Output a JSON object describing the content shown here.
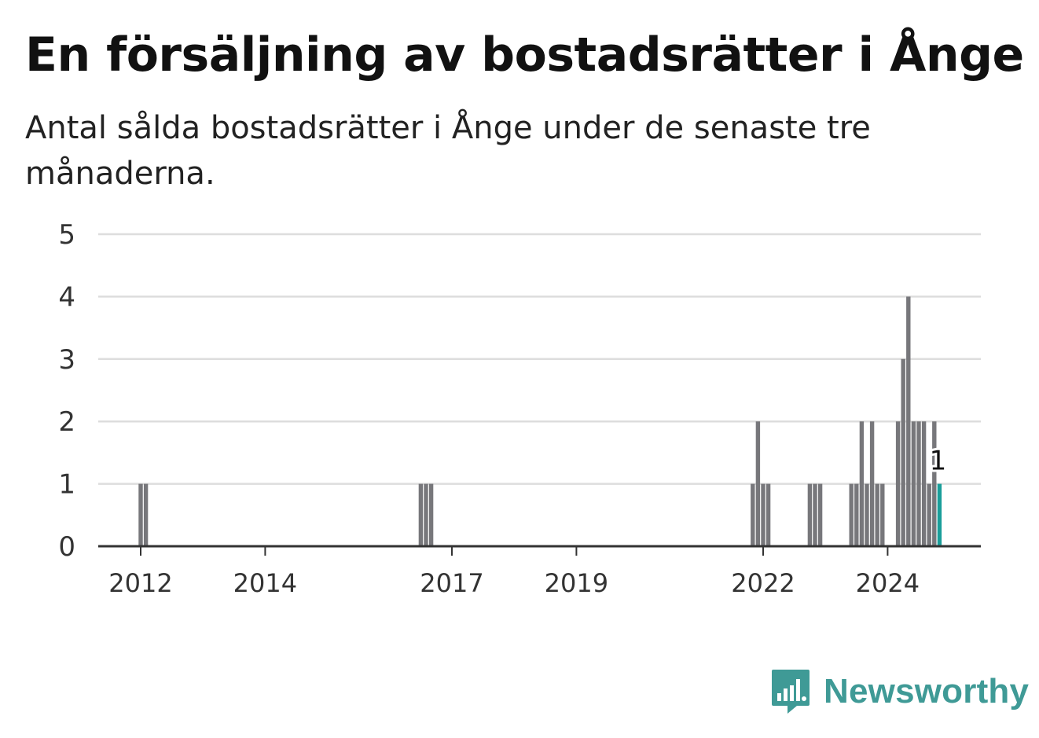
{
  "header": {
    "title": "En försäljning av bostadsrätter i Ånge",
    "subtitle": "Antal sålda bostadsrätter i Ånge under de senaste tre månaderna."
  },
  "brand": {
    "name": "Newsworthy",
    "color": "#3f9a96",
    "icon": "newsworthy-bar-chart-icon"
  },
  "colors": {
    "bar": "#77777b",
    "highlight": "#1a9e9a",
    "grid": "#dddddd",
    "axis": "#333333"
  },
  "chart_data": {
    "type": "bar",
    "x_unit": "month",
    "ylim": [
      0,
      5
    ],
    "yticks": [
      0,
      1,
      2,
      3,
      4,
      5
    ],
    "xtick_labels": [
      "2012",
      "2014",
      "2017",
      "2019",
      "2022",
      "2024"
    ],
    "grid": true,
    "values": [
      {
        "x": "2012-01",
        "y": 1
      },
      {
        "x": "2012-02",
        "y": 1
      },
      {
        "x": "2016-07",
        "y": 1
      },
      {
        "x": "2016-08",
        "y": 1
      },
      {
        "x": "2016-09",
        "y": 1
      },
      {
        "x": "2021-11",
        "y": 1
      },
      {
        "x": "2021-12",
        "y": 2
      },
      {
        "x": "2022-01",
        "y": 1
      },
      {
        "x": "2022-02",
        "y": 1
      },
      {
        "x": "2022-10",
        "y": 1
      },
      {
        "x": "2022-11",
        "y": 1
      },
      {
        "x": "2022-12",
        "y": 1
      },
      {
        "x": "2023-06",
        "y": 1
      },
      {
        "x": "2023-07",
        "y": 1
      },
      {
        "x": "2023-08",
        "y": 2
      },
      {
        "x": "2023-09",
        "y": 1
      },
      {
        "x": "2023-10",
        "y": 2
      },
      {
        "x": "2023-11",
        "y": 1
      },
      {
        "x": "2023-12",
        "y": 1
      },
      {
        "x": "2024-03",
        "y": 2
      },
      {
        "x": "2024-04",
        "y": 3
      },
      {
        "x": "2024-05",
        "y": 4
      },
      {
        "x": "2024-06",
        "y": 2
      },
      {
        "x": "2024-07",
        "y": 2
      },
      {
        "x": "2024-08",
        "y": 2
      },
      {
        "x": "2024-09",
        "y": 1
      },
      {
        "x": "2024-10",
        "y": 2
      },
      {
        "x": "2024-11",
        "y": 1
      }
    ],
    "highlight": {
      "x": "2024-11",
      "y": 1,
      "label": "1"
    }
  }
}
